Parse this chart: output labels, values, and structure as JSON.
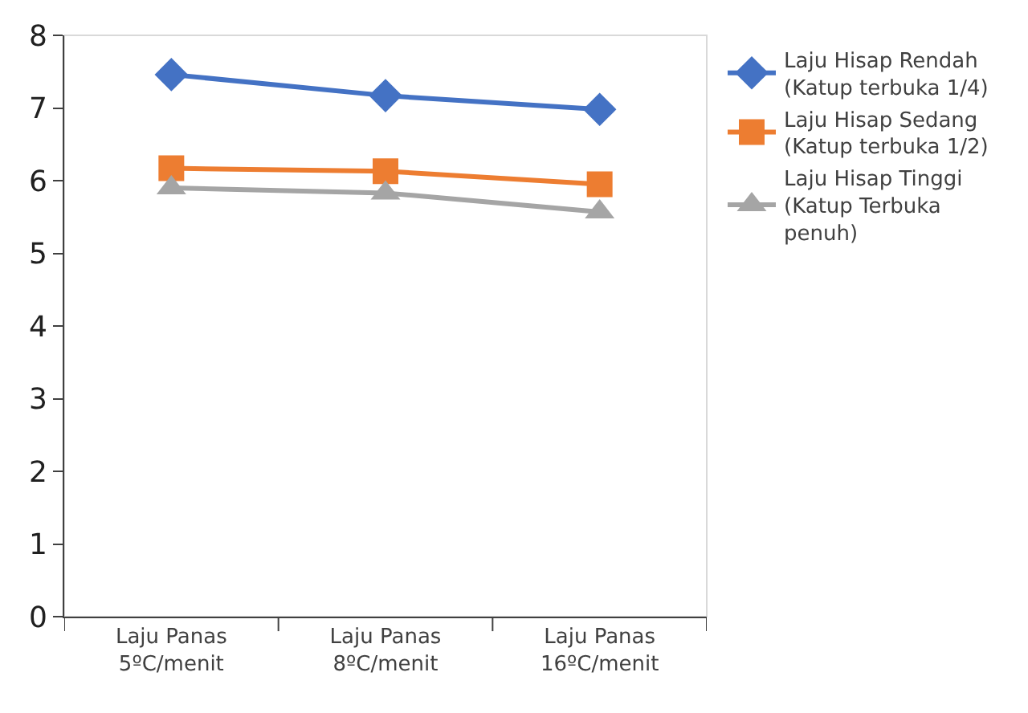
{
  "chart_data": {
    "type": "line",
    "categories": [
      "Laju Panas 5ºC/menit",
      "Laju Panas 8ºC/menit",
      "Laju Panas 16ºC/menit"
    ],
    "series": [
      {
        "name": "Laju Hisap Rendah (Katup terbuka 1/4)",
        "color": "#4472c4",
        "marker": "diamond",
        "values": [
          7.46,
          7.17,
          6.98
        ]
      },
      {
        "name": "Laju Hisap Sedang (Katup terbuka 1/2)",
        "color": "#ed7d31",
        "marker": "square",
        "values": [
          6.17,
          6.13,
          5.95
        ]
      },
      {
        "name": "Laju Hisap Tinggi (Katup Terbuka penuh)",
        "color": "#a5a5a5",
        "marker": "triangle",
        "values": [
          5.9,
          5.83,
          5.57
        ]
      }
    ],
    "ylim": [
      0,
      8
    ],
    "yticks": [
      0,
      1,
      2,
      3,
      4,
      5,
      6,
      7,
      8
    ],
    "grid": false,
    "legend": "right",
    "line_style": "solid"
  }
}
